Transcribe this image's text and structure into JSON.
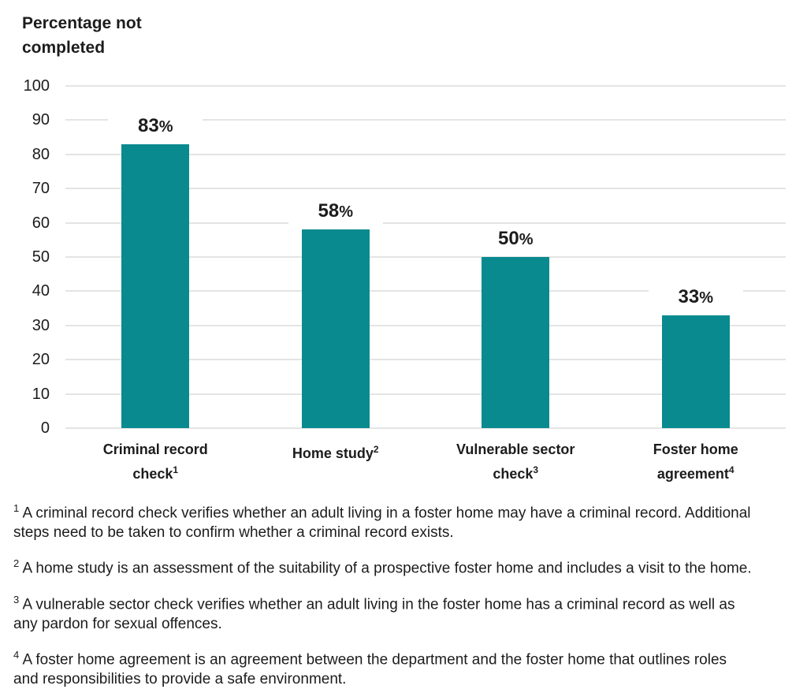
{
  "chart_data": {
    "type": "bar",
    "title": "Percentage not completed",
    "categories": [
      "Criminal record check",
      "Home study",
      "Vulnerable sector check",
      "Foster home agreement"
    ],
    "category_footnote_markers": [
      "1",
      "2",
      "3",
      "4"
    ],
    "values": [
      83,
      58,
      50,
      33
    ],
    "value_labels": [
      "83%",
      "58%",
      "50%",
      "33%"
    ],
    "xlabel": "",
    "ylabel": "Percentage not completed",
    "ylim": [
      0,
      100
    ],
    "yticks": [
      0,
      10,
      20,
      30,
      40,
      50,
      60,
      70,
      80,
      90,
      100
    ],
    "grid": true,
    "legend": "none",
    "bar_color": "#088a8f",
    "gridline_color": "#e4e4e4",
    "text_color": "#1c1c1c"
  },
  "footnotes": [
    {
      "marker": "1",
      "text": "A criminal record check verifies whether an adult living in a foster home may have a criminal record. Additional steps need to be taken to confirm whether a criminal record exists."
    },
    {
      "marker": "2",
      "text": "A home study is an assessment of the suitability of a prospective foster home and includes a visit to the home."
    },
    {
      "marker": "3",
      "text": "A vulnerable sector check verifies whether an adult living in the foster home has a criminal record as well as any pardon for sexual offences."
    },
    {
      "marker": "4",
      "text": "A foster home agreement is an agreement between the department and the foster home that outlines roles and responsibilities to provide a safe environment."
    }
  ]
}
